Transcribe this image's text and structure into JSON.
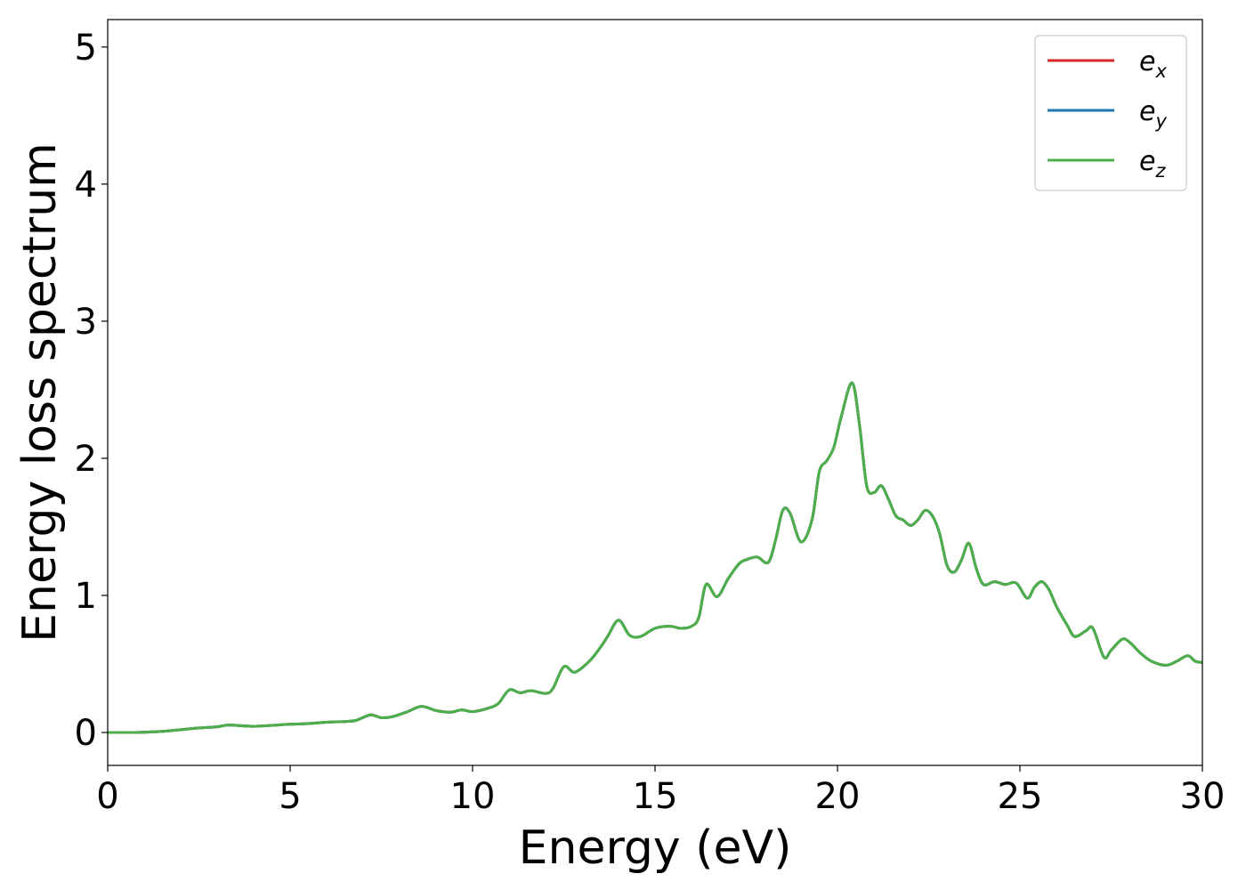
{
  "chart_data": {
    "type": "line",
    "xlabel": "Energy (eV)",
    "ylabel": "Energy loss spectrum",
    "xlim": [
      0,
      30
    ],
    "ylim": [
      -0.24,
      5.2
    ],
    "xticks": [
      0,
      5,
      10,
      15,
      20,
      25,
      30
    ],
    "yticks": [
      0,
      1,
      2,
      3,
      4,
      5
    ],
    "xtick_labels": [
      "0",
      "5",
      "10",
      "15",
      "20",
      "25",
      "30"
    ],
    "ytick_labels": [
      "0",
      "1",
      "2",
      "3",
      "4",
      "5"
    ],
    "grid": false,
    "legend_position": "top-right",
    "x": [
      0,
      0.5,
      1.0,
      1.5,
      2.0,
      2.5,
      3.0,
      3.3,
      3.6,
      4.0,
      4.5,
      5.0,
      5.5,
      6.0,
      6.5,
      6.8,
      7.2,
      7.5,
      7.8,
      8.2,
      8.6,
      9.0,
      9.4,
      9.7,
      10.0,
      10.4,
      10.7,
      11.0,
      11.3,
      11.6,
      12.0,
      12.2,
      12.5,
      12.8,
      13.2,
      13.5,
      13.7,
      14.0,
      14.3,
      14.6,
      15.0,
      15.4,
      15.7,
      16.0,
      16.2,
      16.4,
      16.7,
      17.0,
      17.3,
      17.5,
      17.8,
      18.1,
      18.3,
      18.5,
      18.7,
      19.0,
      19.3,
      19.5,
      19.7,
      19.9,
      20.1,
      20.4,
      20.6,
      20.8,
      21.0,
      21.2,
      21.4,
      21.6,
      21.8,
      22.0,
      22.2,
      22.4,
      22.6,
      22.8,
      23.0,
      23.2,
      23.4,
      23.6,
      23.8,
      24.0,
      24.3,
      24.6,
      24.9,
      25.2,
      25.4,
      25.6,
      25.8,
      26.0,
      26.3,
      26.5,
      26.8,
      27.0,
      27.3,
      27.5,
      27.8,
      28.0,
      28.3,
      28.6,
      29.0,
      29.3,
      29.6,
      29.8,
      30.0
    ],
    "series": [
      {
        "name": "e_x",
        "color": "#d62728",
        "values": [
          0,
          0,
          0.002,
          0.008,
          0.02,
          0.033,
          0.042,
          0.055,
          0.05,
          0.045,
          0.052,
          0.06,
          0.065,
          0.075,
          0.08,
          0.088,
          0.128,
          0.108,
          0.115,
          0.15,
          0.19,
          0.16,
          0.148,
          0.165,
          0.152,
          0.175,
          0.21,
          0.31,
          0.29,
          0.305,
          0.285,
          0.32,
          0.48,
          0.44,
          0.52,
          0.62,
          0.7,
          0.82,
          0.71,
          0.7,
          0.76,
          0.775,
          0.76,
          0.775,
          0.84,
          1.08,
          0.99,
          1.12,
          1.23,
          1.26,
          1.28,
          1.24,
          1.4,
          1.62,
          1.6,
          1.39,
          1.55,
          1.9,
          1.98,
          2.08,
          2.3,
          2.55,
          2.25,
          1.8,
          1.75,
          1.8,
          1.7,
          1.58,
          1.55,
          1.51,
          1.55,
          1.62,
          1.58,
          1.45,
          1.22,
          1.17,
          1.26,
          1.38,
          1.2,
          1.08,
          1.1,
          1.08,
          1.09,
          0.98,
          1.06,
          1.1,
          1.04,
          0.92,
          0.78,
          0.7,
          0.74,
          0.76,
          0.55,
          0.6,
          0.68,
          0.66,
          0.58,
          0.52,
          0.49,
          0.52,
          0.56,
          0.52,
          0.51
        ]
      },
      {
        "name": "e_y",
        "color": "#1f77b4",
        "values": [
          0,
          0,
          0.002,
          0.008,
          0.02,
          0.033,
          0.042,
          0.055,
          0.05,
          0.045,
          0.052,
          0.06,
          0.065,
          0.075,
          0.08,
          0.088,
          0.128,
          0.108,
          0.115,
          0.15,
          0.19,
          0.16,
          0.148,
          0.165,
          0.152,
          0.175,
          0.21,
          0.31,
          0.29,
          0.305,
          0.285,
          0.32,
          0.48,
          0.44,
          0.52,
          0.62,
          0.7,
          0.82,
          0.71,
          0.7,
          0.76,
          0.775,
          0.76,
          0.775,
          0.84,
          1.08,
          0.99,
          1.12,
          1.23,
          1.26,
          1.28,
          1.24,
          1.4,
          1.62,
          1.6,
          1.39,
          1.55,
          1.9,
          1.98,
          2.08,
          2.3,
          2.55,
          2.25,
          1.8,
          1.75,
          1.8,
          1.7,
          1.58,
          1.55,
          1.51,
          1.55,
          1.62,
          1.58,
          1.45,
          1.22,
          1.17,
          1.26,
          1.38,
          1.2,
          1.08,
          1.1,
          1.08,
          1.09,
          0.98,
          1.06,
          1.1,
          1.04,
          0.92,
          0.78,
          0.7,
          0.74,
          0.76,
          0.55,
          0.6,
          0.68,
          0.66,
          0.58,
          0.52,
          0.49,
          0.52,
          0.56,
          0.52,
          0.51
        ]
      },
      {
        "name": "e_z",
        "color": "#4daf4a",
        "values": [
          0,
          0,
          0.002,
          0.008,
          0.02,
          0.033,
          0.042,
          0.055,
          0.05,
          0.045,
          0.052,
          0.06,
          0.065,
          0.075,
          0.08,
          0.088,
          0.128,
          0.108,
          0.115,
          0.15,
          0.19,
          0.16,
          0.148,
          0.165,
          0.152,
          0.175,
          0.21,
          0.31,
          0.29,
          0.305,
          0.285,
          0.32,
          0.48,
          0.44,
          0.52,
          0.62,
          0.7,
          0.82,
          0.71,
          0.7,
          0.76,
          0.775,
          0.76,
          0.775,
          0.84,
          1.08,
          0.99,
          1.12,
          1.23,
          1.26,
          1.28,
          1.24,
          1.4,
          1.62,
          1.6,
          1.39,
          1.55,
          1.9,
          1.98,
          2.08,
          2.3,
          2.55,
          2.25,
          1.8,
          1.75,
          1.8,
          1.7,
          1.58,
          1.55,
          1.51,
          1.55,
          1.62,
          1.58,
          1.45,
          1.22,
          1.17,
          1.26,
          1.38,
          1.2,
          1.08,
          1.1,
          1.08,
          1.09,
          0.98,
          1.06,
          1.1,
          1.04,
          0.92,
          0.78,
          0.7,
          0.74,
          0.76,
          0.55,
          0.6,
          0.68,
          0.66,
          0.58,
          0.52,
          0.49,
          0.52,
          0.56,
          0.52,
          0.51
        ]
      }
    ],
    "legend": [
      {
        "base": "e",
        "sub": "x",
        "color": "#d62728"
      },
      {
        "base": "e",
        "sub": "y",
        "color": "#1f77b4"
      },
      {
        "base": "e",
        "sub": "z",
        "color": "#4daf4a"
      }
    ]
  }
}
